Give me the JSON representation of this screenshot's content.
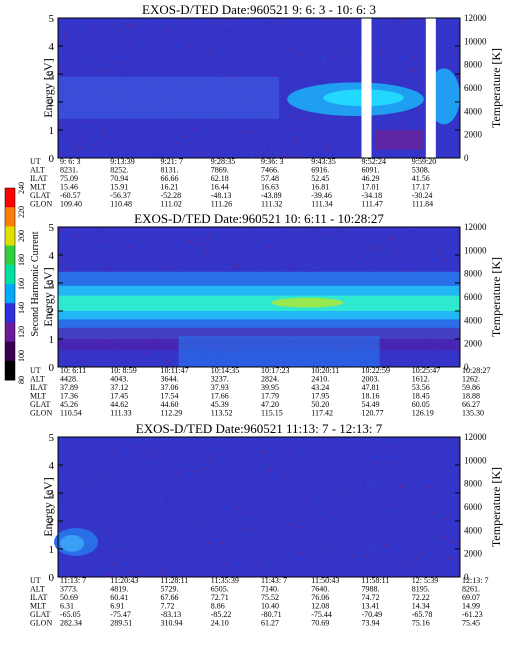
{
  "chart_data": [
    {
      "type": "heatmap",
      "title": "EXOS-D/TED   Date:960521  9: 6: 3 - 10: 6: 3",
      "ylabel": "Energy [eV]",
      "y2label": "Temperature [K]",
      "ylim": [
        0,
        5
      ],
      "y2lim": [
        0,
        12000
      ],
      "yticks": [
        "0",
        "1",
        "2",
        "3",
        "4",
        "5"
      ],
      "y2ticks": [
        "0",
        "2000",
        "4000",
        "6000",
        "8000",
        "10000",
        "12000"
      ],
      "band": {
        "center_ev": 2.1,
        "intensity": "cyan-green, enhanced after 9:43",
        "gaps": [
          "9:52",
          "10:03"
        ]
      },
      "rows": [
        {
          "label": "UT",
          "values": [
            "9: 6: 3",
            "9:13:39",
            "9:21: 7",
            "9:28:35",
            "9:36: 3",
            "9:43:35",
            "9:52:24",
            "9:59:20"
          ]
        },
        {
          "label": "ALT",
          "values": [
            "8231.",
            "8252.",
            "8131.",
            "7869.",
            "7466.",
            "6916.",
            "6091.",
            "5308."
          ]
        },
        {
          "label": "ILAT",
          "values": [
            "75.09",
            "70.94",
            "66.66",
            "62.18",
            "57.48",
            "52.45",
            "46.29",
            "41.56"
          ]
        },
        {
          "label": "MLT",
          "values": [
            "15.46",
            "15.91",
            "16.21",
            "16.44",
            "16.63",
            "16.81",
            "17.01",
            "17.17"
          ]
        },
        {
          "label": "GLAT",
          "values": [
            "-60.57",
            "-56.37",
            "-52.28",
            "-48.13",
            "-43.89",
            "-39.46",
            "-34.18",
            "-30.24"
          ]
        },
        {
          "label": "GLON",
          "values": [
            "109.40",
            "110.48",
            "111.02",
            "111.26",
            "111.32",
            "111.34",
            "111.47",
            "111.84"
          ]
        }
      ]
    },
    {
      "type": "heatmap",
      "title": "EXOS-D/TED   Date:960521  10: 6:11 - 10:28:27",
      "ylabel": "Energy [eV]",
      "y2label": "Temperature [K]",
      "ylim": [
        0,
        5
      ],
      "y2lim": [
        0,
        12000
      ],
      "yticks": [
        "0",
        "1",
        "2",
        "3",
        "4",
        "5"
      ],
      "y2ticks": [
        "0",
        "2000",
        "4000",
        "6000",
        "8000",
        "10000",
        "12000"
      ],
      "band": {
        "center_ev": 2.3,
        "intensity": "strong yellow-green core"
      },
      "rows": [
        {
          "label": "UT",
          "values": [
            "10: 6:11",
            "10: 8:59",
            "10:11:47",
            "10:14:35",
            "10:17:23",
            "10:20:11",
            "10:22:59",
            "10:25:47",
            "10:28:27"
          ]
        },
        {
          "label": "ALT",
          "values": [
            "4428.",
            "4043.",
            "3644.",
            "3237.",
            "2824.",
            "2410.",
            "2003.",
            "1612.",
            "1262."
          ]
        },
        {
          "label": "ILAT",
          "values": [
            "37.89",
            "37.12",
            "37.06",
            "37.93",
            "39.95",
            "43.24",
            "47.81",
            "53.56",
            "59.86"
          ]
        },
        {
          "label": "MLT",
          "values": [
            "17.36",
            "17.45",
            "17.54",
            "17.66",
            "17.79",
            "17.95",
            "18.16",
            "18.45",
            "18.88"
          ]
        },
        {
          "label": "GLAT",
          "values": [
            "45.26",
            "44.62",
            "44.60",
            "45.39",
            "47.20",
            "50.20",
            "54.49",
            "60.05",
            "66.27"
          ]
        },
        {
          "label": "GLON",
          "values": [
            "110.54",
            "111.33",
            "112.29",
            "113.52",
            "115.15",
            "117.42",
            "120.77",
            "126.19",
            "135.30"
          ]
        }
      ]
    },
    {
      "type": "heatmap",
      "title": "EXOS-D/TED   Date:960521  11:13: 7 - 12:13: 7",
      "ylabel": "Energy [eV]",
      "y2label": "Temperature [K]",
      "ylim": [
        0,
        5
      ],
      "y2lim": [
        0,
        12000
      ],
      "yticks": [
        "0",
        "1",
        "2",
        "3",
        "4",
        "5"
      ],
      "y2ticks": [
        "0",
        "2000",
        "4000",
        "6000",
        "8000",
        "10000",
        "12000"
      ],
      "band": {
        "center_ev": 1.3,
        "intensity": "weak patch near start only"
      },
      "rows": [
        {
          "label": "UT",
          "values": [
            "11:13: 7",
            "11:20:43",
            "11:28:11",
            "11:35:39",
            "11:43: 7",
            "11:50:43",
            "11:58:11",
            "12: 5:39",
            "12:13: 7"
          ]
        },
        {
          "label": "ALT",
          "values": [
            "3773.",
            "4819.",
            "5729.",
            "6505.",
            "7140.",
            "7640.",
            "7988.",
            "8195.",
            "8261."
          ]
        },
        {
          "label": "ILAT",
          "values": [
            "50.69",
            "60.41",
            "67.66",
            "72.71",
            "75.52",
            "76.06",
            "74.72",
            "72.22",
            "69.07"
          ]
        },
        {
          "label": "MLT",
          "values": [
            "6.31",
            "6.91",
            "7.72",
            "8.86",
            "10.40",
            "12.08",
            "13.41",
            "14.34",
            "14.99"
          ]
        },
        {
          "label": "GLAT",
          "values": [
            "-65.05",
            "-75.47",
            "-83.13",
            "-85.22",
            "-80.71",
            "-75.44",
            "-70.49",
            "-65.78",
            "-61.23"
          ]
        },
        {
          "label": "GLON",
          "values": [
            "282.34",
            "289.51",
            "310.94",
            "24.10",
            "61.27",
            "70.69",
            "73.94",
            "75.16",
            "75.45"
          ]
        }
      ]
    }
  ],
  "colorbar": {
    "label": "Second Harmonic Current",
    "ticks": [
      "80",
      "100",
      "120",
      "140",
      "160",
      "180",
      "200",
      "220",
      "240"
    ],
    "colors": [
      "#000000",
      "#3a0050",
      "#6a1a9a",
      "#3030e0",
      "#00aaff",
      "#00e0a0",
      "#30d040",
      "#e0e000",
      "#ff8000",
      "#ff0000"
    ]
  }
}
